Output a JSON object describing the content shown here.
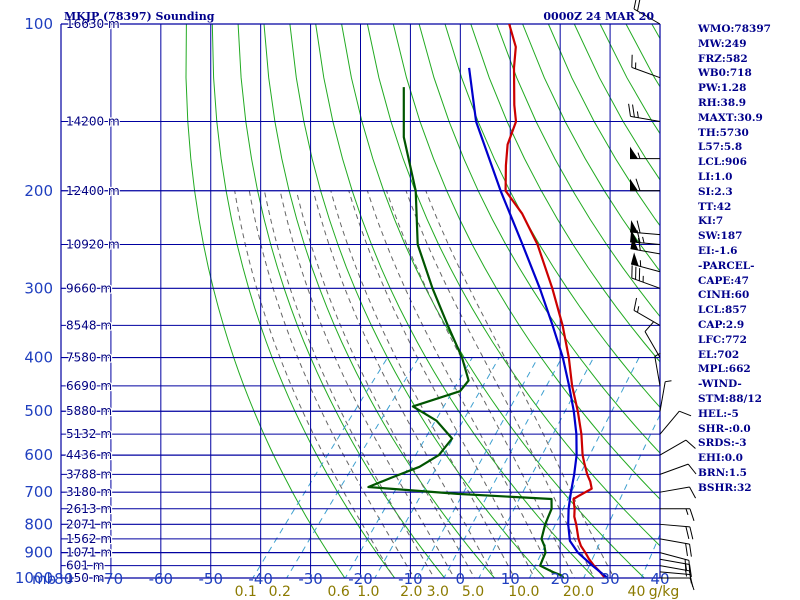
{
  "header": {
    "station_title": "MKJP (78397) Sounding",
    "time_label": "0000Z 24 MAR 20"
  },
  "indices": [
    "WMO:78397",
    "MW:249",
    "FRZ:582",
    "WB0:718",
    "PW:1.28",
    "RH:38.9",
    "MAXT:30.9",
    "TH:5730",
    "L57:5.8",
    "LCL:906",
    "LI:1.0",
    "SI:2.3",
    "TT:42",
    "KI:7",
    "SW:187",
    "EI:-1.6",
    "-PARCEL-",
    "CAPE:47",
    "CINH:60",
    "LCL:857",
    "CAP:2.9",
    "LFC:772",
    "EL:702",
    "MPL:662",
    "-WIND-",
    "STM:88/12",
    "HEL:-5",
    "SHR-:0.0",
    "SRDS:-3",
    "EHI:0.0",
    "BRN:1.5",
    "BSHR:32"
  ],
  "chart_data": {
    "type": "line",
    "title": "MKJP (78397) Sounding",
    "subtitle": "0000Z 24 MAR 20",
    "xlabel": "",
    "ylabel": "mb",
    "x_unit_label": "g/kg",
    "xlim": [
      -80,
      40
    ],
    "ylim": [
      1000,
      100
    ],
    "y_scale": "log",
    "pressure_ticks": [
      100,
      200,
      300,
      400,
      500,
      600,
      700,
      800,
      900,
      1000
    ],
    "pressure_tick_labels": [
      "100",
      "200",
      "300",
      "400",
      "500",
      "600",
      "700",
      "800",
      "900",
      "1000"
    ],
    "temperature_ticks": [
      -80,
      -70,
      -60,
      -50,
      -40,
      -30,
      -20,
      -10,
      0,
      10,
      20,
      30,
      40
    ],
    "temperature_tick_labels": [
      "-80",
      "-70",
      "-60",
      "-50",
      "-40",
      "-30",
      "-20",
      "-10",
      "0",
      "10",
      "20",
      "30",
      "40"
    ],
    "height_levels": [
      {
        "p": 100,
        "label": "16630 m"
      },
      {
        "p": 150,
        "label": "14200 m"
      },
      {
        "p": 200,
        "label": "12400 m"
      },
      {
        "p": 250,
        "label": "10920 m"
      },
      {
        "p": 300,
        "label": "9660 m"
      },
      {
        "p": 350,
        "label": "8548 m"
      },
      {
        "p": 400,
        "label": "7580 m"
      },
      {
        "p": 450,
        "label": "6690 m"
      },
      {
        "p": 500,
        "label": "5880 m"
      },
      {
        "p": 550,
        "label": "5132 m"
      },
      {
        "p": 600,
        "label": "4436 m"
      },
      {
        "p": 650,
        "label": "3788 m"
      },
      {
        "p": 700,
        "label": "3180 m"
      },
      {
        "p": 750,
        "label": "2613 m"
      },
      {
        "p": 800,
        "label": "2071 m"
      },
      {
        "p": 850,
        "label": "1562 m"
      },
      {
        "p": 900,
        "label": "1071 m"
      },
      {
        "p": 950,
        "label": "601 m"
      },
      {
        "p": 1000,
        "label": "150 m"
      }
    ],
    "mixing_ratio_labels": [
      {
        "w": 0.1,
        "label": "0.1"
      },
      {
        "w": 0.2,
        "label": "0.2"
      },
      {
        "w": 0.6,
        "label": "0.6"
      },
      {
        "w": 1.0,
        "label": "1.0"
      },
      {
        "w": 2.0,
        "label": "2.0"
      },
      {
        "w": 3.0,
        "label": "3.0"
      },
      {
        "w": 5.0,
        "label": "5.0"
      },
      {
        "w": 10.0,
        "label": "10.0"
      },
      {
        "w": 20.0,
        "label": "20.0"
      },
      {
        "w": 40.0,
        "label": "40"
      }
    ],
    "grid": true,
    "series": [
      {
        "color": "#cc0000",
        "kind": "temperature",
        "points": [
          {
            "p": 1000,
            "t": 29.0
          },
          {
            "p": 975,
            "t": 27.0
          },
          {
            "p": 950,
            "t": 24.8
          },
          {
            "p": 925,
            "t": 22.8
          },
          {
            "p": 900,
            "t": 21.0
          },
          {
            "p": 875,
            "t": 19.0
          },
          {
            "p": 850,
            "t": 17.4
          },
          {
            "p": 800,
            "t": 14.6
          },
          {
            "p": 775,
            "t": 13.0
          },
          {
            "p": 750,
            "t": 11.8
          },
          {
            "p": 720,
            "t": 10.0
          },
          {
            "p": 710,
            "t": 10.6
          },
          {
            "p": 690,
            "t": 12.0
          },
          {
            "p": 670,
            "t": 10.6
          },
          {
            "p": 650,
            "t": 8.8
          },
          {
            "p": 620,
            "t": 6.4
          },
          {
            "p": 600,
            "t": 4.8
          },
          {
            "p": 550,
            "t": 1.2
          },
          {
            "p": 500,
            "t": -3.2
          },
          {
            "p": 450,
            "t": -8.4
          },
          {
            "p": 400,
            "t": -13.6
          },
          {
            "p": 350,
            "t": -20.0
          },
          {
            "p": 300,
            "t": -28.0
          },
          {
            "p": 250,
            "t": -38.0
          },
          {
            "p": 220,
            "t": -46.0
          },
          {
            "p": 200,
            "t": -53.0
          },
          {
            "p": 180,
            "t": -57.0
          },
          {
            "p": 165,
            "t": -60.0
          },
          {
            "p": 150,
            "t": -62.0
          },
          {
            "p": 140,
            "t": -65.0
          },
          {
            "p": 120,
            "t": -71.0
          },
          {
            "p": 110,
            "t": -74.0
          },
          {
            "p": 100,
            "t": -79.0
          }
        ]
      },
      {
        "color": "#005500",
        "kind": "dewpoint",
        "points": [
          {
            "p": 1000,
            "t": 20.6
          },
          {
            "p": 990,
            "t": 20.0
          },
          {
            "p": 975,
            "t": 17.5
          },
          {
            "p": 950,
            "t": 14.0
          },
          {
            "p": 925,
            "t": 13.5
          },
          {
            "p": 900,
            "t": 13.0
          },
          {
            "p": 875,
            "t": 11.7
          },
          {
            "p": 850,
            "t": 10.0
          },
          {
            "p": 800,
            "t": 8.4
          },
          {
            "p": 775,
            "t": 7.8
          },
          {
            "p": 750,
            "t": 7.2
          },
          {
            "p": 720,
            "t": 5.6
          },
          {
            "p": 705,
            "t": -14.0
          },
          {
            "p": 685,
            "t": -33.0
          },
          {
            "p": 660,
            "t": -30.0
          },
          {
            "p": 630,
            "t": -26.0
          },
          {
            "p": 600,
            "t": -24.0
          },
          {
            "p": 560,
            "t": -24.0
          },
          {
            "p": 520,
            "t": -30.0
          },
          {
            "p": 490,
            "t": -37.0
          },
          {
            "p": 460,
            "t": -30.0
          },
          {
            "p": 440,
            "t": -30.0
          },
          {
            "p": 400,
            "t": -35.0
          },
          {
            "p": 350,
            "t": -43.0
          },
          {
            "p": 300,
            "t": -52.0
          },
          {
            "p": 250,
            "t": -62.0
          },
          {
            "p": 200,
            "t": -71.0
          },
          {
            "p": 160,
            "t": -82.0
          },
          {
            "p": 130,
            "t": -90.0
          }
        ]
      },
      {
        "color": "#0000cc",
        "kind": "parcel",
        "points": [
          {
            "p": 1000,
            "t": 29.5
          },
          {
            "p": 950,
            "t": 24.5
          },
          {
            "p": 900,
            "t": 19.5
          },
          {
            "p": 857,
            "t": 16.0
          },
          {
            "p": 800,
            "t": 13.0
          },
          {
            "p": 750,
            "t": 10.6
          },
          {
            "p": 700,
            "t": 8.4
          },
          {
            "p": 650,
            "t": 6.2
          },
          {
            "p": 600,
            "t": 3.6
          },
          {
            "p": 550,
            "t": 0.2
          },
          {
            "p": 500,
            "t": -4.0
          },
          {
            "p": 450,
            "t": -9.0
          },
          {
            "p": 400,
            "t": -14.8
          },
          {
            "p": 350,
            "t": -22.0
          },
          {
            "p": 300,
            "t": -30.5
          },
          {
            "p": 250,
            "t": -41.0
          },
          {
            "p": 200,
            "t": -54.0
          },
          {
            "p": 150,
            "t": -70.0
          },
          {
            "p": 120,
            "t": -80.0
          }
        ]
      }
    ],
    "winds": [
      {
        "p": 1000,
        "dir": 90,
        "spd": 10
      },
      {
        "p": 975,
        "dir": 95,
        "spd": 12
      },
      {
        "p": 950,
        "dir": 100,
        "spd": 15
      },
      {
        "p": 925,
        "dir": 100,
        "spd": 18
      },
      {
        "p": 900,
        "dir": 105,
        "spd": 20
      },
      {
        "p": 850,
        "dir": 100,
        "spd": 20
      },
      {
        "p": 800,
        "dir": 95,
        "spd": 20
      },
      {
        "p": 750,
        "dir": 90,
        "spd": 15
      },
      {
        "p": 700,
        "dir": 80,
        "spd": 10
      },
      {
        "p": 650,
        "dir": 70,
        "spd": 10
      },
      {
        "p": 600,
        "dir": 60,
        "spd": 10
      },
      {
        "p": 550,
        "dir": 40,
        "spd": 10
      },
      {
        "p": 500,
        "dir": 10,
        "spd": 5
      },
      {
        "p": 450,
        "dir": 350,
        "spd": 5
      },
      {
        "p": 400,
        "dir": 330,
        "spd": 10
      },
      {
        "p": 350,
        "dir": 300,
        "spd": 15
      },
      {
        "p": 300,
        "dir": 290,
        "spd": 35
      },
      {
        "p": 280,
        "dir": 285,
        "spd": 55
      },
      {
        "p": 260,
        "dir": 280,
        "spd": 60
      },
      {
        "p": 250,
        "dir": 275,
        "spd": 65
      },
      {
        "p": 240,
        "dir": 275,
        "spd": 60
      },
      {
        "p": 200,
        "dir": 270,
        "spd": 60
      },
      {
        "p": 175,
        "dir": 270,
        "spd": 55
      },
      {
        "p": 150,
        "dir": 280,
        "spd": 25
      },
      {
        "p": 125,
        "dir": 290,
        "spd": 15
      },
      {
        "p": 100,
        "dir": 300,
        "spd": 20
      }
    ]
  }
}
